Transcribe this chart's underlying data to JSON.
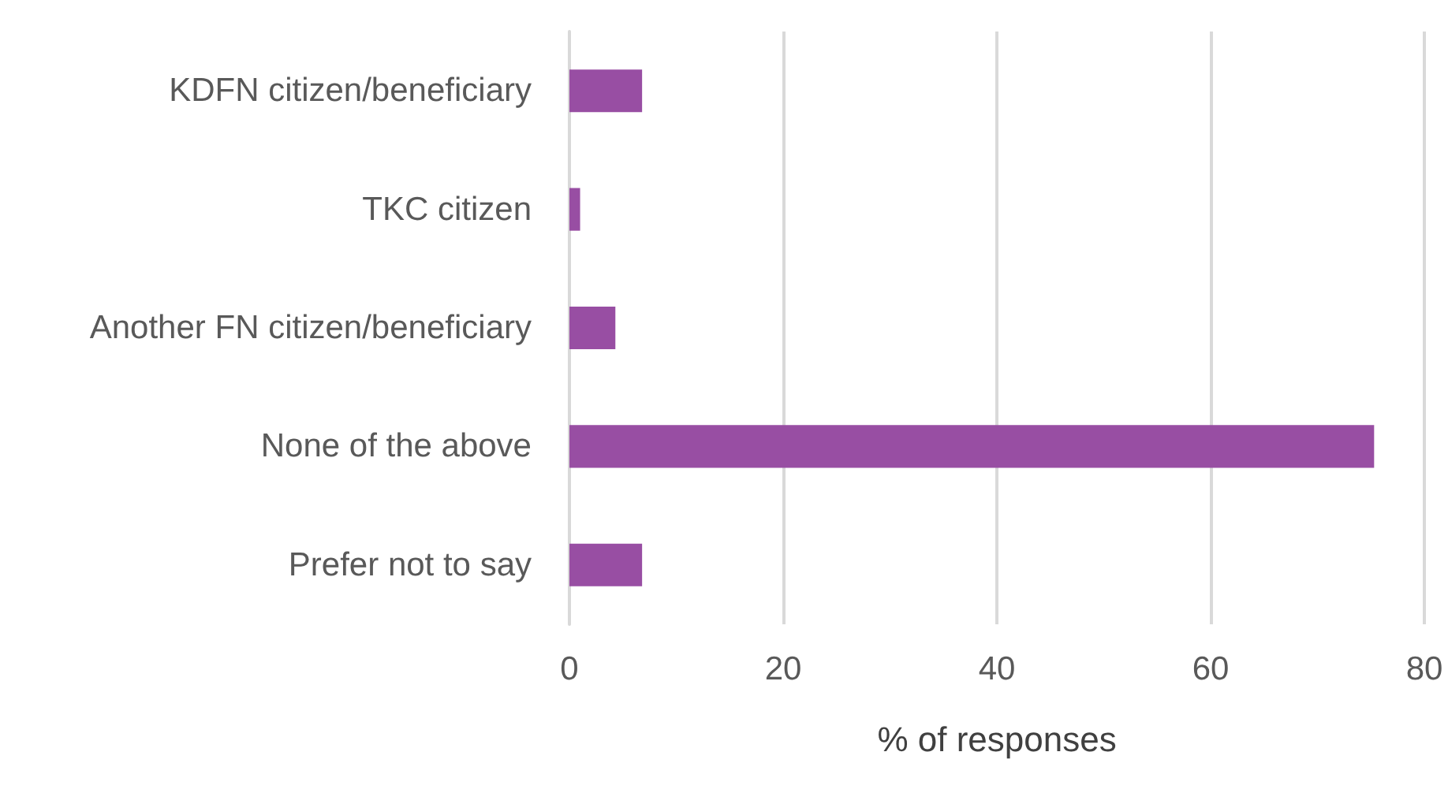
{
  "chart_data": {
    "type": "bar",
    "orientation": "horizontal",
    "xlabel": "% of responses",
    "categories": [
      "KDFN citizen/beneficiary",
      "TKC citizen",
      "Another FN citizen/beneficiary",
      "None of the above",
      "Prefer not to say"
    ],
    "values": [
      6.8,
      1.0,
      4.3,
      75.3,
      6.8
    ],
    "color": "#984ea3",
    "xlim": [
      0,
      80
    ],
    "xticks": [
      0,
      20,
      40,
      60,
      80
    ],
    "grid": "x"
  }
}
